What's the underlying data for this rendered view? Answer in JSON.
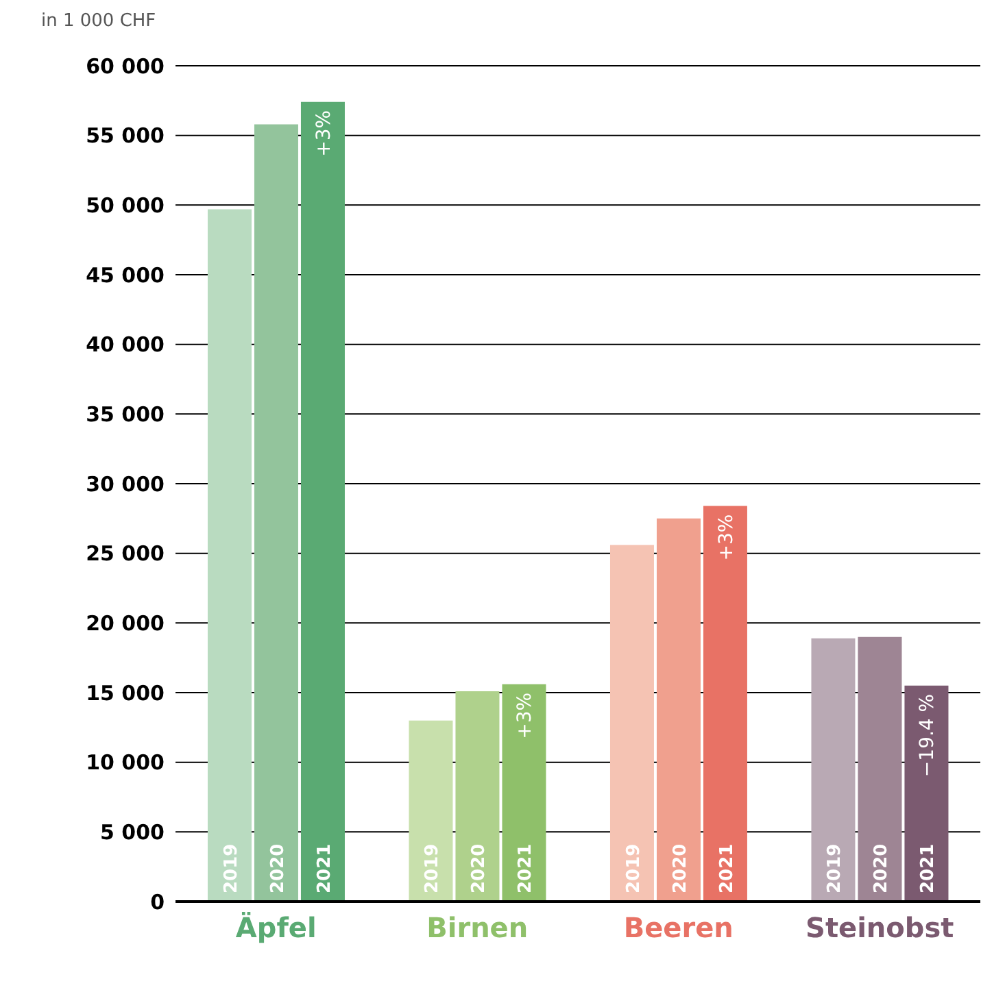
{
  "chart_data": {
    "type": "bar",
    "ylabel": "in 1 000 CHF",
    "categories": [
      "Äpfel",
      "Birnen",
      "Beeren",
      "Steinobst"
    ],
    "series": [
      {
        "name": "2019",
        "colors": [
          "#b9dbc0",
          "#c8e0ac",
          "#f5c3b3",
          "#b9a9b4"
        ],
        "values": [
          49700,
          13000,
          25600,
          18900
        ]
      },
      {
        "name": "2020",
        "colors": [
          "#93c49c",
          "#afd18c",
          "#f0a08e",
          "#9e8594"
        ],
        "values": [
          55800,
          15100,
          27500,
          19000
        ]
      },
      {
        "name": "2021",
        "colors": [
          "#5aaa73",
          "#8fc06a",
          "#e87265",
          "#7b5a70"
        ],
        "values": [
          57400,
          15600,
          28400,
          15500
        ]
      }
    ],
    "annotations": [
      "+3%",
      "+3%",
      "+3%",
      "−19.4 %"
    ],
    "ylim": [
      0,
      60000
    ],
    "yticks": [
      {
        "value": 0,
        "label": "0"
      },
      {
        "value": 5000,
        "label": "5 000"
      },
      {
        "value": 10000,
        "label": "10 000"
      },
      {
        "value": 15000,
        "label": "15 000"
      },
      {
        "value": 20000,
        "label": "20 000"
      },
      {
        "value": 25000,
        "label": "25 000"
      },
      {
        "value": 30000,
        "label": "30 000"
      },
      {
        "value": 35000,
        "label": "35 000"
      },
      {
        "value": 40000,
        "label": "40 000"
      },
      {
        "value": 45000,
        "label": "45 000"
      },
      {
        "value": 50000,
        "label": "50 000"
      },
      {
        "value": 55000,
        "label": "55 000"
      },
      {
        "value": 60000,
        "label": "60 000"
      }
    ],
    "grid": "y",
    "legend": false
  }
}
